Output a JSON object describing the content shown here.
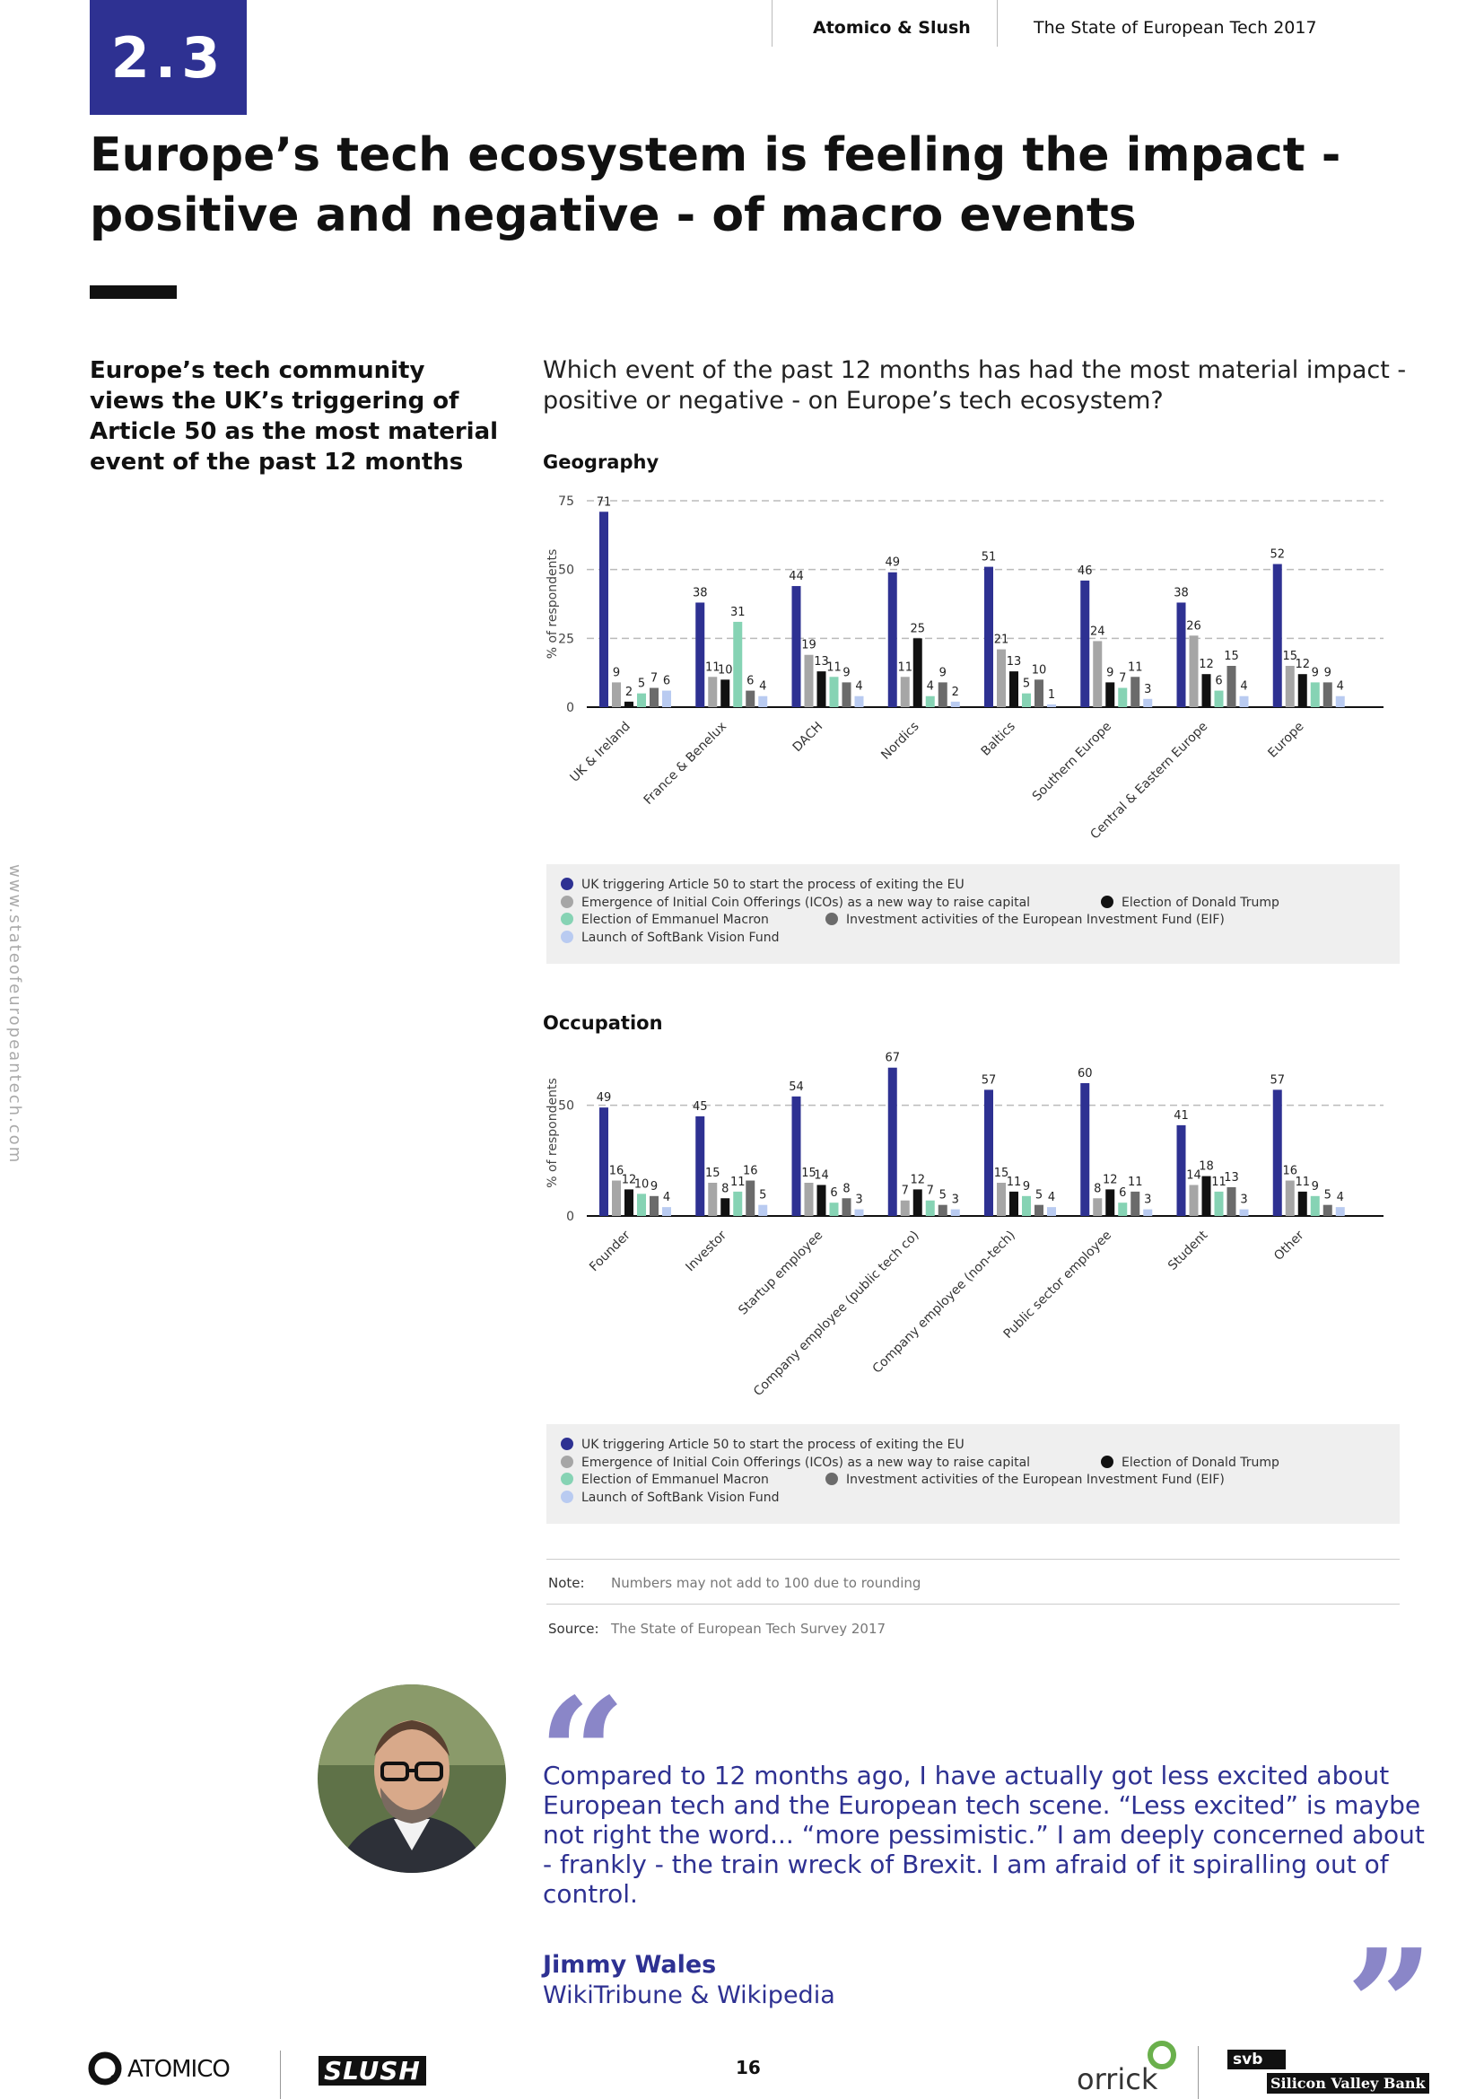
{
  "header": {
    "section": "2.3",
    "brand": "Atomico & Slush",
    "report": "The State of European Tech 2017"
  },
  "title": "Europe’s tech ecosystem is feeling the impact - positive and negative - of macro events",
  "sidebar": "Europe’s tech community views the UK’s triggering of Article 50 as the most material event of the past 12 months",
  "question": "Which event of the past 12 months has had the most material impact - positive or negative - on Europe’s tech ecosystem?",
  "side_url": "www.stateofeuropeantech.com",
  "chart_data": [
    {
      "type": "bar",
      "title": "Geography",
      "y_label": "% of respondents",
      "categories": [
        "UK & Ireland",
        "France & Benelux",
        "DACH",
        "Nordics",
        "Baltics",
        "Southern Europe",
        "Central & Eastern Europe",
        "Europe"
      ],
      "series": [
        {
          "name": "UK triggering Article 50 to start the process of exiting the EU",
          "color": "#2e3192",
          "values": [
            71,
            38,
            44,
            49,
            51,
            46,
            38,
            52
          ]
        },
        {
          "name": "Emergence of Initial Coin Offerings (ICOs) as a new way to raise capital",
          "color": "#a6a6a6",
          "values": [
            9,
            11,
            19,
            11,
            21,
            24,
            26,
            15
          ]
        },
        {
          "name": "Election of Donald Trump",
          "color": "#111111",
          "values": [
            2,
            10,
            13,
            25,
            13,
            9,
            12,
            12
          ]
        },
        {
          "name": "Election of Emmanuel Macron",
          "color": "#86d3b4",
          "values": [
            5,
            31,
            11,
            4,
            5,
            7,
            6,
            9
          ]
        },
        {
          "name": "Investment activities of the European Investment Fund (EIF)",
          "color": "#6b6b6b",
          "values": [
            7,
            6,
            9,
            9,
            10,
            11,
            15,
            9
          ]
        },
        {
          "name": "Launch of SoftBank Vision Fund",
          "color": "#b9cbf1",
          "values": [
            6,
            4,
            4,
            2,
            1,
            3,
            4,
            4
          ]
        }
      ],
      "ylim": [
        0,
        75
      ],
      "yticks": [
        0,
        25,
        50,
        75
      ],
      "grid": true
    },
    {
      "type": "bar",
      "title": "Occupation",
      "y_label": "% of respondents",
      "categories": [
        "Founder",
        "Investor",
        "Startup employee",
        "Company employee (public tech co)",
        "Company employee (non-tech)",
        "Public sector employee",
        "Student",
        "Other"
      ],
      "series": [
        {
          "name": "UK triggering Article 50 to start the process of exiting the EU",
          "color": "#2e3192",
          "values": [
            49,
            45,
            54,
            67,
            57,
            60,
            41,
            57
          ]
        },
        {
          "name": "Emergence of Initial Coin Offerings (ICOs) as a new way to raise capital",
          "color": "#a6a6a6",
          "values": [
            16,
            15,
            15,
            7,
            15,
            8,
            14,
            16
          ]
        },
        {
          "name": "Election of Donald Trump",
          "color": "#111111",
          "values": [
            12,
            8,
            14,
            12,
            11,
            12,
            18,
            11
          ]
        },
        {
          "name": "Election of Emmanuel Macron",
          "color": "#86d3b4",
          "values": [
            10,
            11,
            6,
            7,
            9,
            6,
            11,
            9
          ]
        },
        {
          "name": "Investment activities of the European Investment Fund (EIF)",
          "color": "#6b6b6b",
          "values": [
            9,
            16,
            8,
            5,
            5,
            11,
            13,
            5
          ]
        },
        {
          "name": "Launch of SoftBank Vision Fund",
          "color": "#b9cbf1",
          "values": [
            4,
            5,
            3,
            3,
            4,
            3,
            3,
            4
          ]
        }
      ],
      "ylim": [
        0,
        75
      ],
      "yticks": [
        0,
        50
      ],
      "grid": true
    }
  ],
  "note": {
    "label": "Note:",
    "text": "Numbers may not add to 100 due to rounding"
  },
  "source": {
    "label": "Source:",
    "text": "The State of European Tech Survey 2017"
  },
  "quote": {
    "open_mark": "“",
    "close_mark": "”",
    "text": "Compared to 12 months ago, I have actually got less excited about European tech and the European tech scene. “Less excited” is maybe not right the word... “more pessimistic.” I am deeply concerned about - frankly - the train wreck of Brexit. I am afraid of it spiralling out of control.",
    "name": "Jimmy Wales",
    "affiliation": "WikiTribune & Wikipedia"
  },
  "footer": {
    "atomico": "ATOMICO",
    "slush": "SLUSH",
    "page": "16",
    "orrick": "orrick",
    "svb": "svb",
    "svb_name": "Silicon Valley Bank"
  }
}
